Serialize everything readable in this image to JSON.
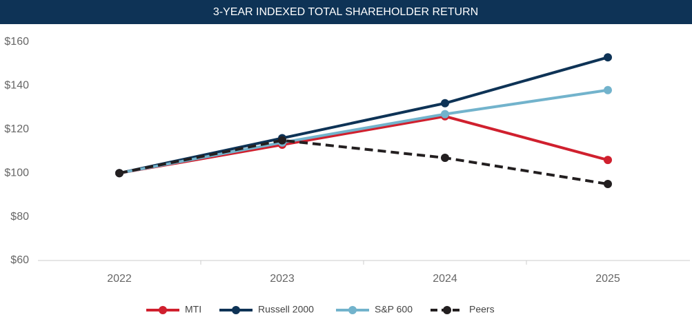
{
  "chart_data": {
    "type": "line",
    "title": "3-YEAR INDEXED TOTAL SHAREHOLDER RETURN",
    "categories": [
      "2022",
      "2023",
      "2024",
      "2025"
    ],
    "series": [
      {
        "name": "MTI",
        "color": "#d0202e",
        "values": [
          100,
          113,
          126,
          106
        ]
      },
      {
        "name": "Russell 2000",
        "color": "#0e3356",
        "values": [
          100,
          116,
          132,
          153
        ]
      },
      {
        "name": "S&P 600",
        "color": "#72b3cc",
        "values": [
          100,
          114,
          127,
          138
        ]
      },
      {
        "name": "Peers",
        "color": "#231f20",
        "dashed": true,
        "values": [
          100,
          115,
          107,
          95
        ]
      }
    ],
    "ylim": [
      60,
      160
    ],
    "yticks": [
      {
        "value": 60,
        "label": "$60"
      },
      {
        "value": 80,
        "label": "$80"
      },
      {
        "value": 100,
        "label": "$100"
      },
      {
        "value": 120,
        "label": "$120"
      },
      {
        "value": 140,
        "label": "$140"
      },
      {
        "value": 160,
        "label": "$160"
      }
    ],
    "grid": false,
    "legend": "bottom"
  }
}
